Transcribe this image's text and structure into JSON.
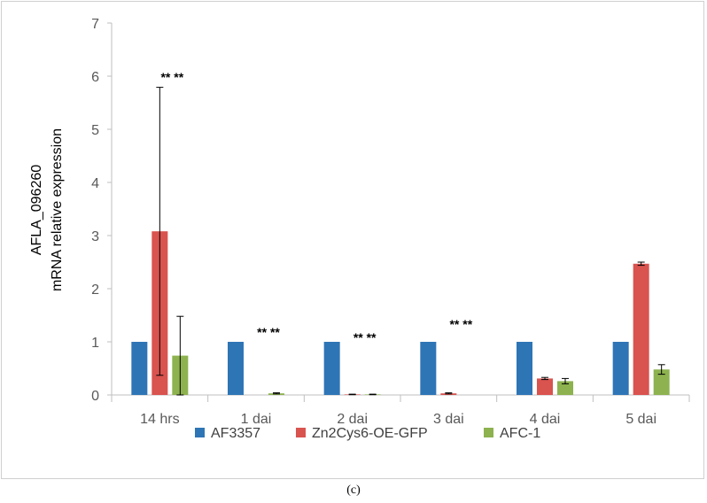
{
  "chart_data": {
    "type": "bar",
    "ylabel_line1": "AFLA_096260",
    "ylabel_line2": "mRNA relative expression",
    "ylim": [
      0,
      7
    ],
    "yticks": [
      0,
      1,
      2,
      3,
      4,
      5,
      6,
      7
    ],
    "grid": false,
    "legend_position": "bottom",
    "categories": [
      "14 hrs",
      "1 dai",
      "2 dai",
      "3 dai",
      "4 dai",
      "5 dai"
    ],
    "series": [
      {
        "name": "AF3357",
        "color": "#2E75B6",
        "values": [
          1,
          1,
          1,
          1,
          1,
          1
        ],
        "errors": [
          0,
          0,
          0,
          0,
          0,
          0
        ]
      },
      {
        "name": "Zn2Cys6-OE-GFP",
        "color": "#D9534F",
        "values": [
          3.08,
          0.0,
          0.01,
          0.03,
          0.31,
          2.47
        ],
        "errors": [
          2.71,
          0,
          0.005,
          0.01,
          0.02,
          0.03
        ]
      },
      {
        "name": "AFC-1",
        "color": "#8DB24F",
        "values": [
          0.74,
          0.03,
          0.01,
          0.0,
          0.26,
          0.48
        ],
        "errors": [
          0.74,
          0.01,
          0.005,
          0,
          0.05,
          0.09
        ]
      }
    ],
    "annotations": [
      {
        "category": 0,
        "text": "**  **",
        "y": 5.9
      },
      {
        "category": 1,
        "text": "**  **",
        "y": 1.1
      },
      {
        "category": 2,
        "text": "**  **",
        "y": 1.0
      },
      {
        "category": 3,
        "text": "**  **",
        "y": 1.25
      }
    ]
  },
  "caption": "(c)"
}
